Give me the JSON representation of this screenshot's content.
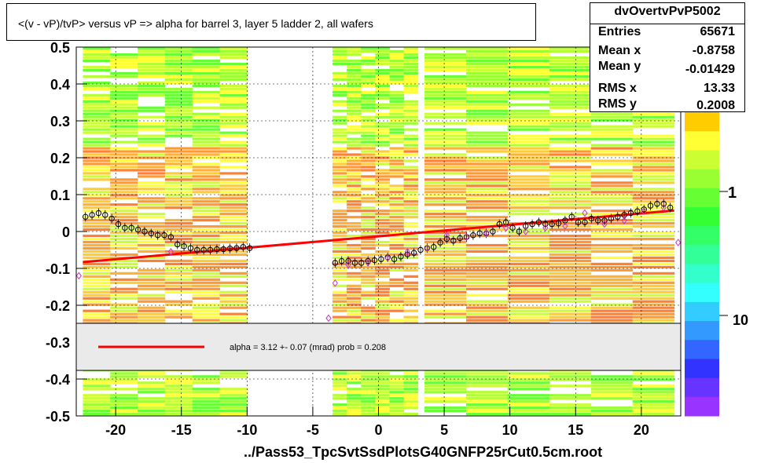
{
  "title": "<(v - vP)/tvP> versus   vP => alpha for barrel 3, layer 5 ladder 2, all wafers",
  "stats": {
    "name": "dvOvertvPvP5002",
    "rows": [
      {
        "label": "Entries",
        "value": "65671"
      },
      {
        "label": "Mean x",
        "value": "-0.8758"
      },
      {
        "label": "Mean y",
        "value": "-0.01429"
      },
      {
        "label": "RMS x",
        "value": "13.33"
      },
      {
        "label": "RMS y",
        "value": "0.2008"
      }
    ]
  },
  "legend": {
    "fit_text": "alpha =    3.12 +-  0.07 (mrad) prob = 0.208",
    "line_color": "#ff0000"
  },
  "footer": "../Pass53_TpcSvtSsdPlotsG40GNFP25rCut0.5cm.root",
  "palette_labels": {
    "one": "1",
    "tenth": "10"
  },
  "chart_data": {
    "type": "scatter",
    "xlim": [
      -23,
      23
    ],
    "ylim": [
      -0.5,
      0.5
    ],
    "xticks": [
      -20,
      -15,
      -10,
      -5,
      0,
      5,
      10,
      15,
      20
    ],
    "yticks": [
      0.5,
      0.4,
      0.3,
      0.2,
      0.1,
      0,
      -0.1,
      -0.2,
      -0.3,
      -0.4,
      -0.5
    ],
    "xtick_labels": [
      "-20",
      "-15",
      "-10",
      "-5",
      "0",
      "5",
      "10",
      "15",
      "20"
    ],
    "ytick_labels": [
      "0.5",
      "0.4",
      "0.3",
      "0.2",
      "0.1",
      "0",
      "-0.1",
      "-0.2",
      "-0.3",
      "-0.4",
      "-0.5"
    ],
    "grid": true,
    "histogram_bands": [
      {
        "x_from": -22.5,
        "x_to": -10.0
      },
      {
        "x_from": -3.5,
        "x_to": 3.0
      },
      {
        "x_from": 3.5,
        "x_to": 22.5
      }
    ],
    "fit_line": {
      "x": [
        -22.5,
        22.5
      ],
      "y": [
        -0.083,
        0.057
      ]
    },
    "series": [
      {
        "marker": "circle-black",
        "x": [
          -22.3,
          -21.8,
          -21.3,
          -20.8,
          -20.3,
          -19.8,
          -19.3,
          -18.8,
          -18.3,
          -17.8,
          -17.3,
          -16.8,
          -16.3,
          -15.8,
          -15.3,
          -14.8,
          -14.3,
          -13.8,
          -13.3,
          -12.8,
          -12.3,
          -11.8,
          -11.3,
          -10.8,
          -10.3,
          -9.8,
          -3.3,
          -2.8,
          -2.3,
          -1.8,
          -1.3,
          -0.8,
          -0.3,
          0.2,
          0.7,
          1.2,
          1.7,
          2.2,
          2.7,
          3.2,
          3.7,
          4.2,
          4.7,
          5.2,
          5.7,
          6.2,
          6.7,
          7.2,
          7.7,
          8.2,
          8.7,
          9.2,
          9.7,
          10.2,
          10.7,
          11.2,
          11.7,
          12.2,
          12.7,
          13.2,
          13.7,
          14.2,
          14.7,
          15.2,
          15.7,
          16.2,
          16.7,
          17.2,
          17.7,
          18.2,
          18.7,
          19.2,
          19.7,
          20.2,
          20.7,
          21.2,
          21.7,
          22.2
        ],
        "y": [
          0.04,
          0.045,
          0.05,
          0.045,
          0.035,
          0.02,
          0.01,
          0.01,
          0.005,
          0.0,
          -0.005,
          -0.01,
          -0.01,
          -0.015,
          -0.035,
          -0.04,
          -0.045,
          -0.05,
          -0.05,
          -0.05,
          -0.048,
          -0.048,
          -0.046,
          -0.045,
          -0.042,
          -0.045,
          -0.085,
          -0.08,
          -0.08,
          -0.085,
          -0.085,
          -0.08,
          -0.078,
          -0.075,
          -0.07,
          -0.075,
          -0.068,
          -0.062,
          -0.058,
          -0.05,
          -0.045,
          -0.042,
          -0.03,
          -0.02,
          -0.025,
          -0.018,
          -0.015,
          -0.01,
          -0.005,
          -0.005,
          -0.0,
          0.02,
          0.025,
          0.01,
          0.0,
          0.015,
          0.02,
          0.025,
          0.02,
          0.02,
          0.022,
          0.03,
          0.04,
          0.025,
          0.025,
          0.035,
          0.03,
          0.03,
          0.035,
          0.04,
          0.045,
          0.05,
          0.055,
          0.06,
          0.07,
          0.075,
          0.075,
          0.065
        ]
      },
      {
        "marker": "diamond-magenta",
        "x": [
          -22.8,
          -15.8,
          -3.8,
          -3.3,
          -2.3,
          -0.8,
          0.7,
          2.2,
          3.7,
          5.2,
          6.7,
          8.2,
          9.7,
          11.2,
          12.7,
          14.2,
          15.7,
          17.2,
          18.7,
          20.2,
          21.7,
          22.8
        ],
        "y": [
          -0.12,
          -0.055,
          -0.235,
          -0.14,
          -0.09,
          -0.085,
          -0.072,
          -0.055,
          -0.045,
          -0.01,
          -0.015,
          -0.005,
          0.01,
          0.0,
          0.01,
          0.015,
          0.05,
          0.02,
          0.03,
          0.055,
          0.065,
          -0.03
        ]
      }
    ]
  }
}
